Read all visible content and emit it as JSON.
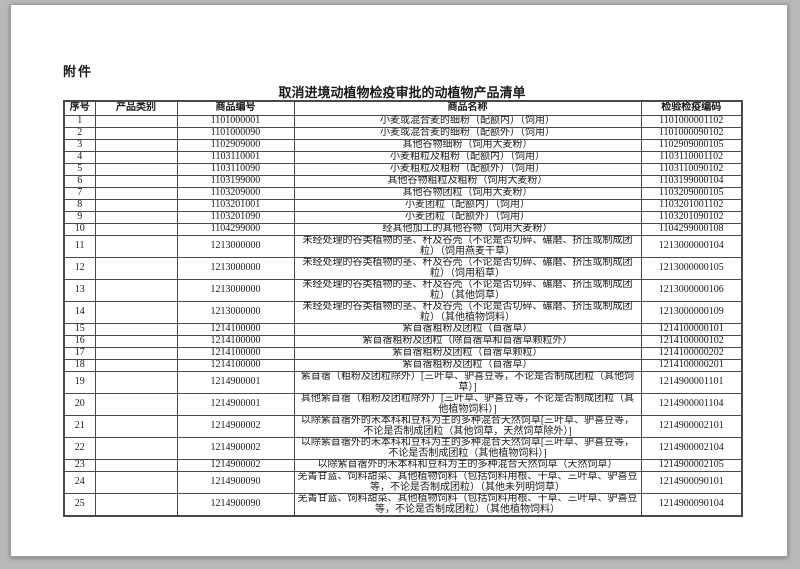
{
  "page": {
    "attachment_label": "附件",
    "table_title": "取消进境动植物检疫审批的动植物产品清单"
  },
  "colors": {
    "canvas_bg": "#b9b9b9",
    "page_bg": "#ffffff",
    "table_border": "#4a4a4a",
    "text": "#1a1a1a"
  },
  "table": {
    "headers": [
      "序号",
      "产品类别",
      "商品编号",
      "商品名称",
      "检验检疫编码"
    ],
    "rows": [
      {
        "seq": "1",
        "category": "",
        "code": "1101000001",
        "name": "小麦或混合麦的细粉（配额内）（饲用）",
        "ciq": "1101000001102"
      },
      {
        "seq": "2",
        "category": "",
        "code": "1101000090",
        "name": "小麦或混合麦的细粉（配额外）（饲用）",
        "ciq": "1101000090102"
      },
      {
        "seq": "3",
        "category": "",
        "code": "1102909000",
        "name": "其他谷物细粉（饲用大麦粉）",
        "ciq": "1102909000105"
      },
      {
        "seq": "4",
        "category": "",
        "code": "1103110001",
        "name": "小麦粗粒及粗粉（配额内）（饲用）",
        "ciq": "1103110001102"
      },
      {
        "seq": "5",
        "category": "",
        "code": "1103110090",
        "name": "小麦粗粒及粗粉（配额外）（饲用）",
        "ciq": "1103110090102"
      },
      {
        "seq": "6",
        "category": "",
        "code": "1103199000",
        "name": "其他谷物粗粒及粗粉（饲用大麦粉）",
        "ciq": "1103199000104"
      },
      {
        "seq": "7",
        "category": "",
        "code": "1103209000",
        "name": "其他谷物团粒（饲用大麦粉）",
        "ciq": "1103209000105"
      },
      {
        "seq": "8",
        "category": "",
        "code": "1103201001",
        "name": "小麦团粒（配额内）（饲用）",
        "ciq": "1103201001102"
      },
      {
        "seq": "9",
        "category": "",
        "code": "1103201090",
        "name": "小麦团粒（配额外）（饲用）",
        "ciq": "1103201090102"
      },
      {
        "seq": "10",
        "category": "",
        "code": "1104299000",
        "name": "经其他加工的其他谷物（饲用大麦粉）",
        "ciq": "1104299000108"
      },
      {
        "seq": "11",
        "category": "",
        "code": "1213000000",
        "name": "未经处理的谷类植物的茎、秆及谷壳（不论是否切碎、碾磨、挤压或制成团粒）（饲用燕麦干草）",
        "ciq": "1213000000104"
      },
      {
        "seq": "12",
        "category": "",
        "code": "1213000000",
        "name": "未经处理的谷类植物的茎、秆及谷壳（不论是否切碎、碾磨、挤压或制成团粒）（饲用稻草）",
        "ciq": "1213000000105"
      },
      {
        "seq": "13",
        "category": "",
        "code": "1213000000",
        "name": "未经处理的谷类植物的茎、秆及谷壳（不论是否切碎、碾磨、挤压或制成团粒）（其他饲草）",
        "ciq": "1213000000106"
      },
      {
        "seq": "14",
        "category": "",
        "code": "1213000000",
        "name": "未经处理的谷类植物的茎、秆及谷壳（不论是否切碎、碾磨、挤压或制成团粒）（其他植物饲料）",
        "ciq": "1213000000109"
      },
      {
        "seq": "15",
        "category": "",
        "code": "1214100000",
        "name": "紫苜蓿粗粉及团粒（苜蓿草）",
        "ciq": "1214100000101"
      },
      {
        "seq": "16",
        "category": "",
        "code": "1214100000",
        "name": "紫苜蓿粗粉及团粒（除苜蓿草和苜蓿草颗粒外）",
        "ciq": "1214100000102"
      },
      {
        "seq": "17",
        "category": "",
        "code": "1214100000",
        "name": "紫苜蓿粗粉及团粒（苜蓿草颗粒）",
        "ciq": "1214100000202"
      },
      {
        "seq": "18",
        "category": "",
        "code": "1214100000",
        "name": "紫苜蓿粗粉及团粒（苜蓿草）",
        "ciq": "1214100000201"
      },
      {
        "seq": "19",
        "category": "",
        "code": "1214900001",
        "name": "紫苜蓿（粗粉及团粒除外）[三叶草、驴喜豆等，不论是否制成团粒（其他饲草）]",
        "ciq": "1214900001101"
      },
      {
        "seq": "20",
        "category": "",
        "code": "1214900001",
        "name": "其他紫苜蓿（粗粉及团粒除外）[三叶草、驴喜豆等，不论是否制成团粒（其他植物饲料）]",
        "ciq": "1214900001104"
      },
      {
        "seq": "21",
        "category": "",
        "code": "1214900002",
        "name": "以除紫苜蓿外的禾本科和豆科为主的多种混合天然饲草[三叶草、驴喜豆等，不论是否制成团粒（其他饲草，天然饲草除外）]",
        "ciq": "1214900002101"
      },
      {
        "seq": "22",
        "category": "",
        "code": "1214900002",
        "name": "以除紫苜蓿外的禾本科和豆科为主的多种混合天然饲草[三叶草、驴喜豆等，不论是否制成团粒（其他植物饲料）]",
        "ciq": "1214900002104"
      },
      {
        "seq": "23",
        "category": "",
        "code": "1214900002",
        "name": "以除紫苜蓿外的禾本科和豆科为主的多种混合天然饲草（天然饲草）",
        "ciq": "1214900002105"
      },
      {
        "seq": "24",
        "category": "",
        "code": "1214900090",
        "name": "芜菁甘蓝、饲料甜菜、其他植物饲料（包括饲料用根、干草、三叶草、驴喜豆等，不论是否制成团粒）（其他未列明饲草）",
        "ciq": "1214900090101"
      },
      {
        "seq": "25",
        "category": "",
        "code": "1214900090",
        "name": "芜菁甘蓝、饲料甜菜、其他植物饲料（包括饲料用根、干草、三叶草、驴喜豆等，不论是否制成团粒）（其他植物饲料）",
        "ciq": "1214900090104"
      }
    ]
  }
}
